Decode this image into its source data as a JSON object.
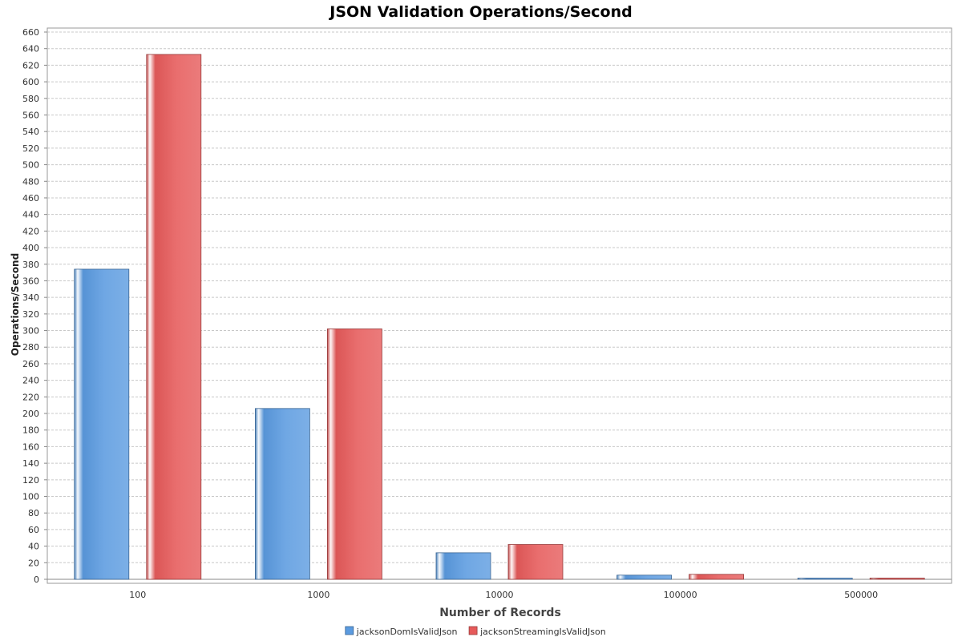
{
  "chart_data": {
    "type": "bar",
    "title": "JSON Validation Operations/Second",
    "xlabel": "Number of Records",
    "ylabel": "Operations/Second",
    "categories": [
      "100",
      "1000",
      "10000",
      "100000",
      "500000"
    ],
    "series": [
      {
        "name": "jacksonDomIsValidJson",
        "color": "#5B9BE0",
        "values": [
          374,
          206,
          32,
          5,
          1
        ]
      },
      {
        "name": "jacksonStreamingIsValidJson",
        "color": "#E65A5A",
        "values": [
          633,
          302,
          42,
          6,
          1
        ]
      }
    ],
    "ylim": [
      0,
      660
    ],
    "yticks": [
      0,
      20,
      40,
      60,
      80,
      100,
      120,
      140,
      160,
      180,
      200,
      220,
      240,
      260,
      280,
      300,
      320,
      340,
      360,
      380,
      400,
      420,
      440,
      460,
      480,
      500,
      520,
      540,
      560,
      580,
      600,
      620,
      640,
      660
    ],
    "grid": true,
    "legend": "bottom-center"
  }
}
